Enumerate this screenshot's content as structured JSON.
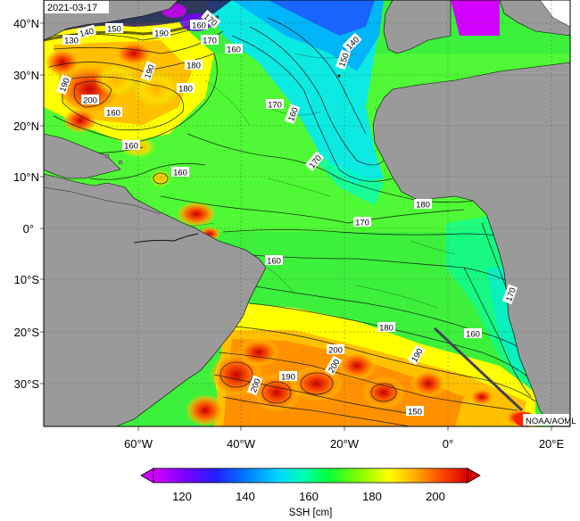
{
  "map": {
    "date": "2021-03-17",
    "credit": "NOAA/AOML",
    "lat_labels": [
      "40°N",
      "30°N",
      "20°N",
      "10°N",
      "0°",
      "10°S",
      "20°S",
      "30°S"
    ],
    "lon_labels": [
      "60°W",
      "40°W",
      "20°W",
      "0°",
      "20°E"
    ],
    "contour_labels": [
      "130",
      "140",
      "150",
      "170",
      "190",
      "160",
      "170",
      "160",
      "140",
      "190",
      "180",
      "180",
      "150",
      "200",
      "170",
      "160",
      "190",
      "160",
      "160",
      "170",
      "160",
      "170",
      "180",
      "160",
      "170",
      "160",
      "180",
      "190",
      "200",
      "200",
      "200",
      "190",
      "150"
    ],
    "land_color": "#9a9a9a"
  },
  "colorbar": {
    "title": "SSH [cm]",
    "ticks": [
      "120",
      "140",
      "160",
      "180",
      "200"
    ],
    "range": [
      110,
      210
    ],
    "colors": [
      "#d400ff",
      "#7a00ff",
      "#2020ff",
      "#0080ff",
      "#00d8ff",
      "#00ffb0",
      "#00ff40",
      "#80ff00",
      "#ffff00",
      "#ffb000",
      "#ff5000",
      "#d80000"
    ]
  }
}
